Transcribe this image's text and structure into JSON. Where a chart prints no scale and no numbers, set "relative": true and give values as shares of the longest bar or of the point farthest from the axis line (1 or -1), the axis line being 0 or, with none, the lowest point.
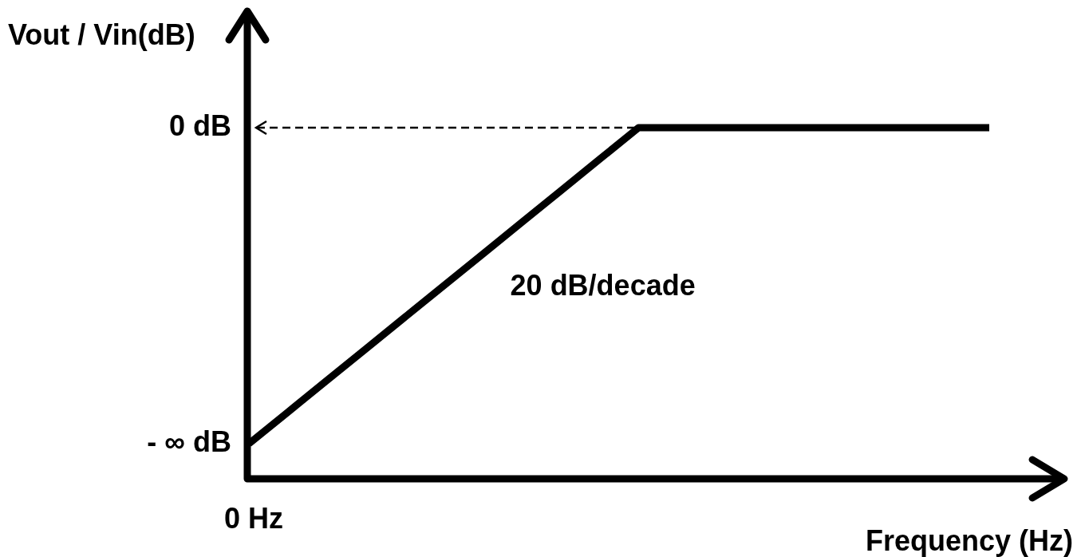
{
  "chart_data": {
    "type": "line",
    "relative": true,
    "xlabel": "Frequency (Hz)",
    "ylabel": "Vout / Vin(dB)",
    "categories": [
      null,
      null,
      null,
      null,
      null,
      null,
      null,
      null,
      null,
      null,
      null,
      null,
      null,
      null,
      null,
      null,
      null,
      null,
      null,
      null
    ],
    "series": [
      {
        "color": "#000000",
        "values": [
          0.1,
          0.19,
          0.28,
          0.37,
          0.46,
          0.55,
          0.64,
          0.73,
          0.82,
          0.91,
          1,
          1,
          1,
          1,
          1,
          1,
          1,
          1,
          1,
          1
        ]
      }
    ],
    "marker": "none",
    "line_style": "solid",
    "ref_lines": [
      {
        "axis": "y",
        "value": 1,
        "color": "#000000",
        "line_style": "dashed"
      }
    ],
    "annotations": [
      "0 dB",
      "- ∞ dB",
      "0 Hz",
      "20 dB/decade"
    ]
  }
}
